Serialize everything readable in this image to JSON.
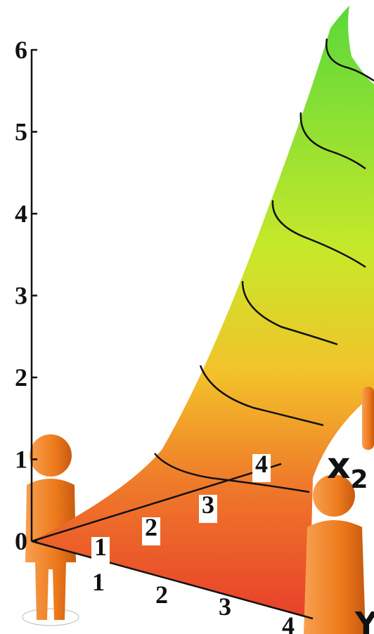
{
  "vertical_axis": {
    "labels": [
      "0",
      "1",
      "2",
      "3",
      "4",
      "5",
      "6"
    ]
  },
  "front_axis": {
    "labels": [
      "1",
      "2",
      "3",
      "4"
    ]
  },
  "depth_axis": {
    "labels": [
      "1",
      "2",
      "3",
      "4"
    ]
  },
  "axis_names": {
    "depth": "x",
    "depth_subscript": "2",
    "front": "Y"
  }
}
